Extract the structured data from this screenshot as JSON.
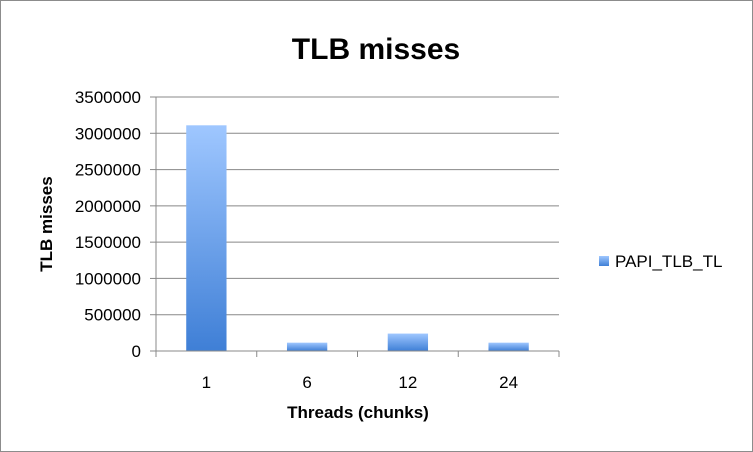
{
  "chart_data": {
    "type": "bar",
    "title": "TLB misses",
    "xlabel": "Threads (chunks)",
    "ylabel": "TLB misses",
    "categories": [
      "1",
      "6",
      "12",
      "24"
    ],
    "series": [
      {
        "name": "PAPI_TLB_TL",
        "values": [
          3110000,
          115000,
          240000,
          115000
        ]
      }
    ],
    "ylim": [
      0,
      3500000
    ],
    "yticks": [
      0,
      500000,
      1000000,
      1500000,
      2000000,
      2500000,
      3000000,
      3500000
    ],
    "ytick_labels": [
      "0",
      "500000",
      "1000000",
      "1500000",
      "2000000",
      "2500000",
      "3000000",
      "3500000"
    ],
    "grid": true,
    "legend_position": "right",
    "colors": {
      "bar_top": "#9fc7ff",
      "bar_bottom": "#3f7fd6",
      "grid": "#888888",
      "axis": "#888888"
    }
  }
}
